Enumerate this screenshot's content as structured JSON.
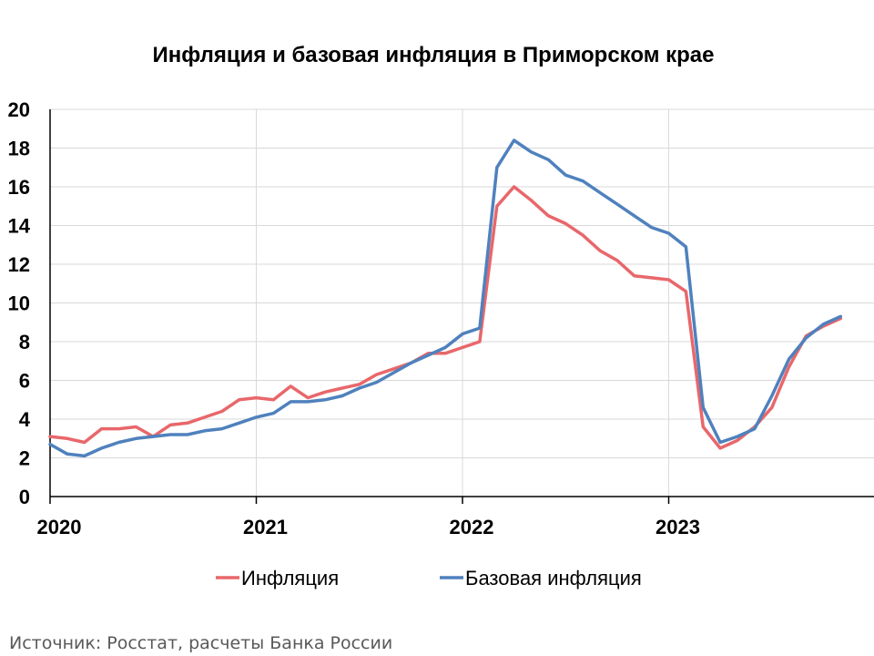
{
  "chart_data": {
    "type": "line",
    "title": "Инфляция и базовая инфляция в Приморском крае",
    "xlabel": "",
    "ylabel": "",
    "ylim": [
      0,
      20
    ],
    "yticks": [
      "0",
      "2",
      "4",
      "6",
      "8",
      "10",
      "12",
      "14",
      "16",
      "18",
      "20"
    ],
    "xticks": [
      "2020",
      "2021",
      "2022",
      "2023"
    ],
    "x": [
      "2020-01",
      "2020-02",
      "2020-03",
      "2020-04",
      "2020-05",
      "2020-06",
      "2020-07",
      "2020-08",
      "2020-09",
      "2020-10",
      "2020-11",
      "2020-12",
      "2021-01",
      "2021-02",
      "2021-03",
      "2021-04",
      "2021-05",
      "2021-06",
      "2021-07",
      "2021-08",
      "2021-09",
      "2021-10",
      "2021-11",
      "2021-12",
      "2022-01",
      "2022-02",
      "2022-03",
      "2022-04",
      "2022-05",
      "2022-06",
      "2022-07",
      "2022-08",
      "2022-09",
      "2022-10",
      "2022-11",
      "2022-12",
      "2023-01",
      "2023-02",
      "2023-03",
      "2023-04",
      "2023-05",
      "2023-06",
      "2023-07",
      "2023-08",
      "2023-09",
      "2023-10",
      "2023-11",
      "2023-12"
    ],
    "series": [
      {
        "name": "Инфляция",
        "color": "#e8676b",
        "values": [
          3.1,
          3.0,
          2.8,
          3.5,
          3.5,
          3.6,
          3.1,
          3.7,
          3.8,
          4.1,
          4.4,
          5.0,
          5.1,
          5.0,
          5.7,
          5.1,
          5.4,
          5.6,
          5.8,
          6.3,
          6.6,
          6.9,
          7.4,
          7.4,
          7.7,
          8.0,
          15.0,
          16.0,
          15.3,
          14.5,
          14.1,
          13.5,
          12.7,
          12.2,
          11.4,
          11.3,
          11.2,
          10.6,
          3.6,
          2.5,
          2.9,
          3.6,
          4.6,
          6.7,
          8.3,
          8.8,
          9.2,
          null
        ]
      },
      {
        "name": "Базовая инфляция",
        "color": "#4f81bd",
        "values": [
          2.7,
          2.2,
          2.1,
          2.5,
          2.8,
          3.0,
          3.1,
          3.2,
          3.2,
          3.4,
          3.5,
          3.8,
          4.1,
          4.3,
          4.9,
          4.9,
          5.0,
          5.2,
          5.6,
          5.9,
          6.4,
          6.9,
          7.3,
          7.7,
          8.4,
          8.7,
          17.0,
          18.4,
          17.8,
          17.4,
          16.6,
          16.3,
          15.7,
          15.1,
          14.5,
          13.9,
          13.6,
          12.9,
          4.6,
          2.8,
          3.1,
          3.5,
          5.2,
          7.1,
          8.2,
          8.9,
          9.3,
          null
        ]
      }
    ],
    "grid": true,
    "legend_position": "bottom"
  },
  "source": "Источник: Росстат, расчеты Банка России"
}
